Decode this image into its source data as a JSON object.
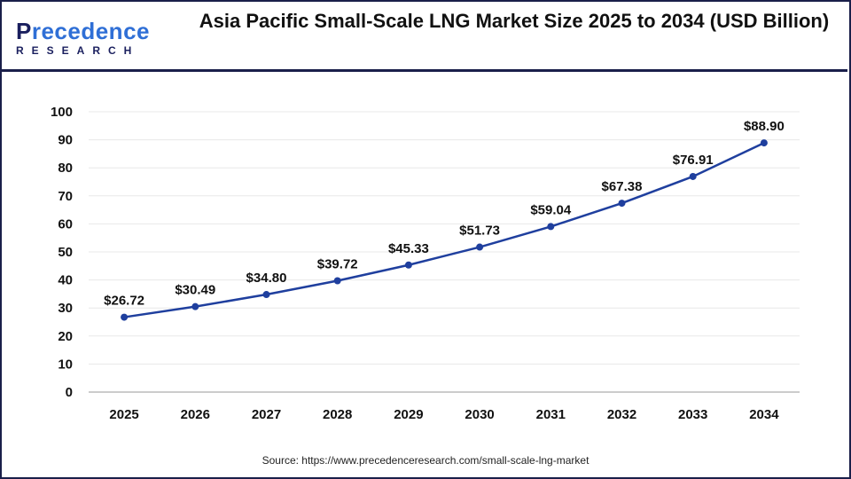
{
  "brand": {
    "name_part1": "P",
    "name_part2": "recedence",
    "subtitle": "RESEARCH"
  },
  "title": "Asia Pacific Small-Scale LNG Market Size 2025 to 2034 (USD Billion)",
  "source": "Source: https://www.precedenceresearch.com/small-scale-lng-market",
  "chart_data": {
    "type": "line",
    "title": "Asia Pacific Small-Scale LNG Market Size 2025 to 2034 (USD Billion)",
    "categories": [
      "2025",
      "2026",
      "2027",
      "2028",
      "2029",
      "2030",
      "2031",
      "2032",
      "2033",
      "2034"
    ],
    "values": [
      26.72,
      30.49,
      34.8,
      39.72,
      45.33,
      51.73,
      59.04,
      67.38,
      76.91,
      88.9
    ],
    "data_labels": [
      "$26.72",
      "$30.49",
      "$34.80",
      "$39.72",
      "$45.33",
      "$51.73",
      "$59.04",
      "$67.38",
      "$76.91",
      "$88.90"
    ],
    "yticks": [
      0,
      10,
      20,
      30,
      40,
      50,
      60,
      70,
      80,
      90,
      100
    ],
    "ylim": [
      0,
      100
    ],
    "grid": true,
    "line_color": "#1f3f9e"
  }
}
